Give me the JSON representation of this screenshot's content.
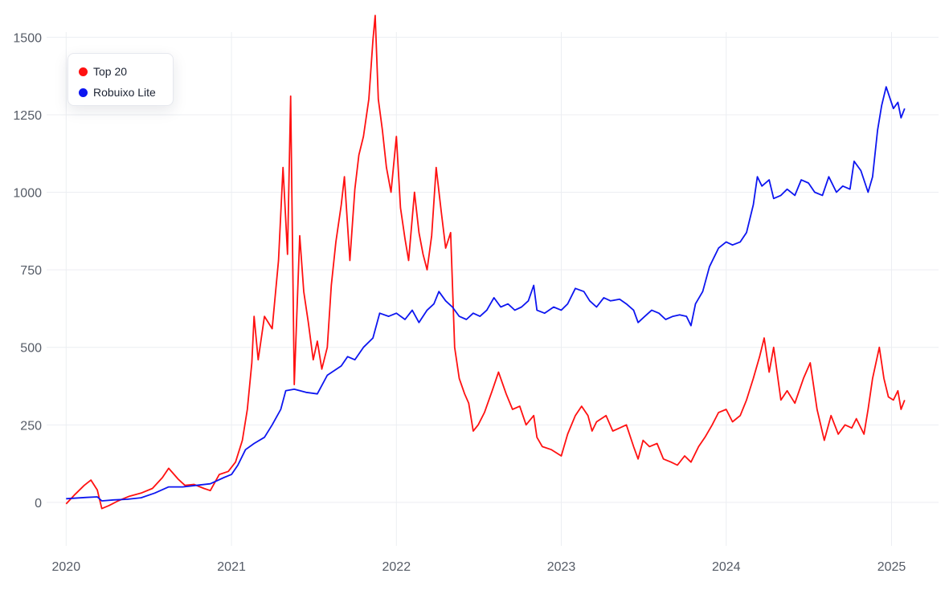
{
  "chart_data": {
    "type": "line",
    "title": "",
    "xlabel": "",
    "ylabel": "",
    "xlim": [
      "2019-11-01",
      "2025-04-15"
    ],
    "ylim": [
      -140,
      1620
    ],
    "yticks": [
      0,
      250,
      500,
      750,
      1000,
      1250,
      1500
    ],
    "ytick_labels": [
      "0",
      "250",
      "500",
      "750",
      "1000",
      "1250",
      "1500"
    ],
    "xticks": [
      "2020-01-01",
      "2021-01-01",
      "2022-01-01",
      "2023-01-01",
      "2024-01-01",
      "2025-01-01"
    ],
    "xtick_labels": [
      "2020",
      "2021",
      "2022",
      "2023",
      "2024",
      "2025"
    ],
    "grid": true,
    "legend_position": "top-left",
    "series": [
      {
        "name": "Top 20",
        "color": "#ff1111",
        "points": [
          [
            "2020-01-01",
            -5
          ],
          [
            "2020-01-20",
            25
          ],
          [
            "2020-02-10",
            55
          ],
          [
            "2020-02-25",
            72
          ],
          [
            "2020-03-10",
            40
          ],
          [
            "2020-03-20",
            -20
          ],
          [
            "2020-04-05",
            -10
          ],
          [
            "2020-04-25",
            5
          ],
          [
            "2020-05-20",
            20
          ],
          [
            "2020-06-15",
            30
          ],
          [
            "2020-07-10",
            45
          ],
          [
            "2020-08-01",
            80
          ],
          [
            "2020-08-15",
            110
          ],
          [
            "2020-09-05",
            75
          ],
          [
            "2020-09-20",
            55
          ],
          [
            "2020-10-10",
            58
          ],
          [
            "2020-11-01",
            45
          ],
          [
            "2020-11-15",
            38
          ],
          [
            "2020-12-05",
            90
          ],
          [
            "2020-12-25",
            100
          ],
          [
            "2021-01-10",
            130
          ],
          [
            "2021-01-25",
            200
          ],
          [
            "2021-02-05",
            300
          ],
          [
            "2021-02-15",
            450
          ],
          [
            "2021-02-20",
            600
          ],
          [
            "2021-03-01",
            460
          ],
          [
            "2021-03-15",
            600
          ],
          [
            "2021-04-01",
            560
          ],
          [
            "2021-04-15",
            780
          ],
          [
            "2021-04-25",
            1080
          ],
          [
            "2021-05-05",
            800
          ],
          [
            "2021-05-12",
            1310
          ],
          [
            "2021-05-20",
            380
          ],
          [
            "2021-06-01",
            860
          ],
          [
            "2021-06-10",
            680
          ],
          [
            "2021-06-20",
            580
          ],
          [
            "2021-07-01",
            460
          ],
          [
            "2021-07-10",
            520
          ],
          [
            "2021-07-20",
            430
          ],
          [
            "2021-08-01",
            500
          ],
          [
            "2021-08-10",
            700
          ],
          [
            "2021-08-20",
            840
          ],
          [
            "2021-09-01",
            960
          ],
          [
            "2021-09-08",
            1050
          ],
          [
            "2021-09-20",
            780
          ],
          [
            "2021-10-01",
            1010
          ],
          [
            "2021-10-10",
            1120
          ],
          [
            "2021-10-20",
            1180
          ],
          [
            "2021-11-01",
            1300
          ],
          [
            "2021-11-10",
            1490
          ],
          [
            "2021-11-15",
            1570
          ],
          [
            "2021-11-22",
            1300
          ],
          [
            "2021-12-01",
            1200
          ],
          [
            "2021-12-10",
            1080
          ],
          [
            "2021-12-20",
            1000
          ],
          [
            "2022-01-01",
            1180
          ],
          [
            "2022-01-10",
            950
          ],
          [
            "2022-01-20",
            850
          ],
          [
            "2022-01-28",
            780
          ],
          [
            "2022-02-10",
            1000
          ],
          [
            "2022-02-20",
            870
          ],
          [
            "2022-03-01",
            800
          ],
          [
            "2022-03-10",
            750
          ],
          [
            "2022-03-20",
            860
          ],
          [
            "2022-03-30",
            1080
          ],
          [
            "2022-04-10",
            940
          ],
          [
            "2022-04-20",
            820
          ],
          [
            "2022-05-01",
            870
          ],
          [
            "2022-05-10",
            500
          ],
          [
            "2022-05-20",
            400
          ],
          [
            "2022-06-01",
            350
          ],
          [
            "2022-06-10",
            320
          ],
          [
            "2022-06-20",
            230
          ],
          [
            "2022-07-01",
            250
          ],
          [
            "2022-07-15",
            290
          ],
          [
            "2022-08-01",
            360
          ],
          [
            "2022-08-15",
            420
          ],
          [
            "2022-09-01",
            350
          ],
          [
            "2022-09-15",
            300
          ],
          [
            "2022-10-01",
            310
          ],
          [
            "2022-10-15",
            250
          ],
          [
            "2022-11-01",
            280
          ],
          [
            "2022-11-08",
            210
          ],
          [
            "2022-11-20",
            180
          ],
          [
            "2022-12-10",
            170
          ],
          [
            "2023-01-01",
            150
          ],
          [
            "2023-01-15",
            220
          ],
          [
            "2023-02-01",
            280
          ],
          [
            "2023-02-15",
            310
          ],
          [
            "2023-03-01",
            280
          ],
          [
            "2023-03-10",
            230
          ],
          [
            "2023-03-20",
            260
          ],
          [
            "2023-04-10",
            280
          ],
          [
            "2023-04-25",
            230
          ],
          [
            "2023-05-10",
            240
          ],
          [
            "2023-05-25",
            250
          ],
          [
            "2023-06-10",
            180
          ],
          [
            "2023-06-20",
            140
          ],
          [
            "2023-07-01",
            200
          ],
          [
            "2023-07-15",
            180
          ],
          [
            "2023-08-01",
            190
          ],
          [
            "2023-08-15",
            140
          ],
          [
            "2023-09-01",
            130
          ],
          [
            "2023-09-15",
            120
          ],
          [
            "2023-10-01",
            150
          ],
          [
            "2023-10-15",
            130
          ],
          [
            "2023-11-01",
            180
          ],
          [
            "2023-11-15",
            210
          ],
          [
            "2023-12-01",
            250
          ],
          [
            "2023-12-15",
            290
          ],
          [
            "2024-01-01",
            300
          ],
          [
            "2024-01-15",
            260
          ],
          [
            "2024-02-01",
            280
          ],
          [
            "2024-02-15",
            330
          ],
          [
            "2024-03-01",
            400
          ],
          [
            "2024-03-15",
            470
          ],
          [
            "2024-03-25",
            530
          ],
          [
            "2024-04-05",
            420
          ],
          [
            "2024-04-15",
            500
          ],
          [
            "2024-05-01",
            330
          ],
          [
            "2024-05-15",
            360
          ],
          [
            "2024-06-01",
            320
          ],
          [
            "2024-06-20",
            400
          ],
          [
            "2024-07-05",
            450
          ],
          [
            "2024-07-20",
            300
          ],
          [
            "2024-08-05",
            200
          ],
          [
            "2024-08-20",
            280
          ],
          [
            "2024-09-05",
            220
          ],
          [
            "2024-09-20",
            250
          ],
          [
            "2024-10-05",
            240
          ],
          [
            "2024-10-15",
            270
          ],
          [
            "2024-11-01",
            220
          ],
          [
            "2024-11-10",
            300
          ],
          [
            "2024-11-20",
            400
          ],
          [
            "2024-12-05",
            500
          ],
          [
            "2024-12-15",
            400
          ],
          [
            "2024-12-25",
            340
          ],
          [
            "2025-01-05",
            330
          ],
          [
            "2025-01-15",
            360
          ],
          [
            "2025-01-22",
            300
          ],
          [
            "2025-01-30",
            330
          ]
        ]
      },
      {
        "name": "Robuixo Lite",
        "color": "#0d16f0",
        "points": [
          [
            "2020-01-01",
            12
          ],
          [
            "2020-02-15",
            16
          ],
          [
            "2020-03-10",
            18
          ],
          [
            "2020-03-20",
            5
          ],
          [
            "2020-04-15",
            8
          ],
          [
            "2020-05-15",
            10
          ],
          [
            "2020-06-15",
            15
          ],
          [
            "2020-07-15",
            30
          ],
          [
            "2020-08-15",
            50
          ],
          [
            "2020-09-15",
            50
          ],
          [
            "2020-10-15",
            55
          ],
          [
            "2020-11-15",
            60
          ],
          [
            "2020-12-15",
            80
          ],
          [
            "2021-01-01",
            90
          ],
          [
            "2021-01-15",
            120
          ],
          [
            "2021-02-01",
            170
          ],
          [
            "2021-02-20",
            190
          ],
          [
            "2021-03-15",
            210
          ],
          [
            "2021-04-01",
            250
          ],
          [
            "2021-04-20",
            300
          ],
          [
            "2021-05-01",
            360
          ],
          [
            "2021-05-20",
            365
          ],
          [
            "2021-06-15",
            355
          ],
          [
            "2021-07-10",
            350
          ],
          [
            "2021-08-01",
            410
          ],
          [
            "2021-09-01",
            440
          ],
          [
            "2021-09-15",
            470
          ],
          [
            "2021-10-01",
            460
          ],
          [
            "2021-10-20",
            500
          ],
          [
            "2021-11-10",
            530
          ],
          [
            "2021-11-25",
            610
          ],
          [
            "2021-12-15",
            600
          ],
          [
            "2022-01-01",
            610
          ],
          [
            "2022-01-20",
            590
          ],
          [
            "2022-02-05",
            620
          ],
          [
            "2022-02-20",
            580
          ],
          [
            "2022-03-10",
            620
          ],
          [
            "2022-03-25",
            640
          ],
          [
            "2022-04-05",
            680
          ],
          [
            "2022-04-20",
            650
          ],
          [
            "2022-05-05",
            630
          ],
          [
            "2022-05-20",
            600
          ],
          [
            "2022-06-05",
            590
          ],
          [
            "2022-06-20",
            610
          ],
          [
            "2022-07-05",
            600
          ],
          [
            "2022-07-20",
            620
          ],
          [
            "2022-08-05",
            660
          ],
          [
            "2022-08-20",
            630
          ],
          [
            "2022-09-05",
            640
          ],
          [
            "2022-09-20",
            620
          ],
          [
            "2022-10-05",
            630
          ],
          [
            "2022-10-20",
            650
          ],
          [
            "2022-11-01",
            700
          ],
          [
            "2022-11-08",
            620
          ],
          [
            "2022-11-25",
            610
          ],
          [
            "2022-12-15",
            630
          ],
          [
            "2023-01-01",
            620
          ],
          [
            "2023-01-15",
            640
          ],
          [
            "2023-02-01",
            690
          ],
          [
            "2023-02-20",
            680
          ],
          [
            "2023-03-05",
            650
          ],
          [
            "2023-03-20",
            630
          ],
          [
            "2023-04-05",
            660
          ],
          [
            "2023-04-20",
            650
          ],
          [
            "2023-05-10",
            655
          ],
          [
            "2023-05-25",
            640
          ],
          [
            "2023-06-10",
            620
          ],
          [
            "2023-06-20",
            580
          ],
          [
            "2023-07-05",
            600
          ],
          [
            "2023-07-20",
            620
          ],
          [
            "2023-08-05",
            610
          ],
          [
            "2023-08-20",
            590
          ],
          [
            "2023-09-05",
            600
          ],
          [
            "2023-09-20",
            605
          ],
          [
            "2023-10-05",
            600
          ],
          [
            "2023-10-15",
            570
          ],
          [
            "2023-10-25",
            640
          ],
          [
            "2023-11-10",
            680
          ],
          [
            "2023-11-25",
            760
          ],
          [
            "2023-12-15",
            820
          ],
          [
            "2024-01-01",
            840
          ],
          [
            "2024-01-15",
            830
          ],
          [
            "2024-02-01",
            840
          ],
          [
            "2024-02-15",
            870
          ],
          [
            "2024-03-01",
            960
          ],
          [
            "2024-03-10",
            1050
          ],
          [
            "2024-03-20",
            1020
          ],
          [
            "2024-04-05",
            1040
          ],
          [
            "2024-04-15",
            980
          ],
          [
            "2024-05-01",
            990
          ],
          [
            "2024-05-15",
            1010
          ],
          [
            "2024-06-01",
            990
          ],
          [
            "2024-06-15",
            1040
          ],
          [
            "2024-07-01",
            1030
          ],
          [
            "2024-07-15",
            1000
          ],
          [
            "2024-08-01",
            990
          ],
          [
            "2024-08-15",
            1050
          ],
          [
            "2024-09-01",
            1000
          ],
          [
            "2024-09-15",
            1020
          ],
          [
            "2024-10-01",
            1010
          ],
          [
            "2024-10-10",
            1100
          ],
          [
            "2024-10-25",
            1070
          ],
          [
            "2024-11-10",
            1000
          ],
          [
            "2024-11-20",
            1050
          ],
          [
            "2024-12-01",
            1200
          ],
          [
            "2024-12-10",
            1280
          ],
          [
            "2024-12-20",
            1340
          ],
          [
            "2025-01-05",
            1270
          ],
          [
            "2025-01-15",
            1290
          ],
          [
            "2025-01-22",
            1240
          ],
          [
            "2025-01-30",
            1270
          ]
        ]
      }
    ]
  }
}
